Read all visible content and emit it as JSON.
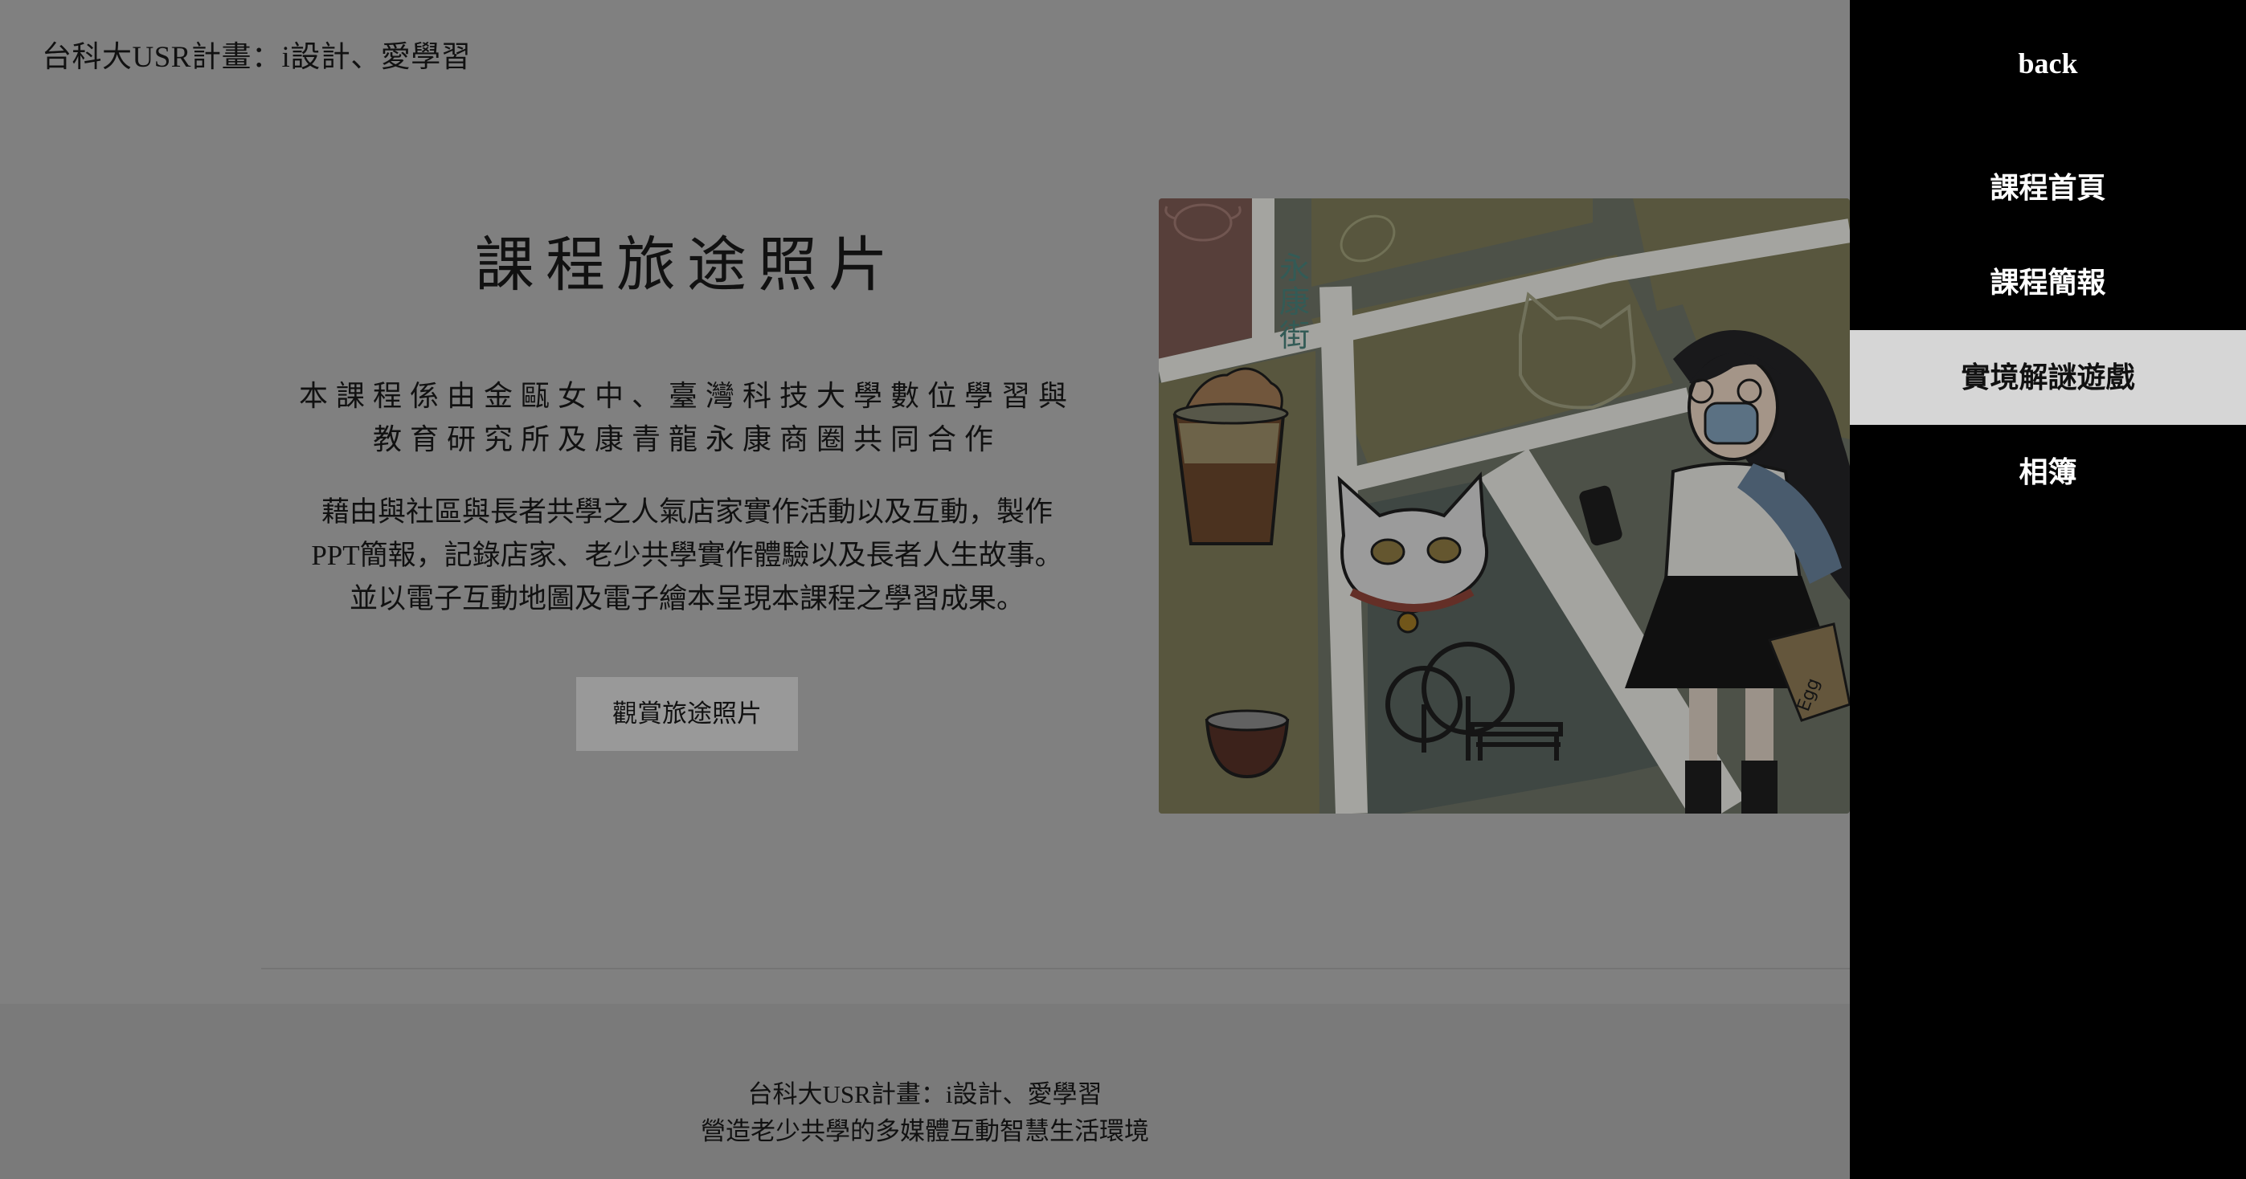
{
  "header": {
    "site_title": "台科大USR計畫：i設計、愛學習"
  },
  "main": {
    "heading": "課程旅途照片",
    "subtitle_lines": [
      "本課程係由金甌女中、臺灣科技大學數位學習與",
      "教育研究所及康青龍永康商圈共同合作"
    ],
    "body_lines": [
      "藉由與社區與長者共學之人氣店家實作活動以及互動，製作",
      "PPT簡報，記錄店家、老少共學實作體驗以及長者人生故事。",
      "並以電子互動地圖及電子繪本呈現本課程之學習成果。"
    ],
    "button_label": "觀賞旅途照片"
  },
  "illustration": {
    "street_sign": "永康街",
    "bag_text": "Egg"
  },
  "footer": {
    "line1": "台科大USR計畫：i設計、愛學習",
    "line2": "營造老少共學的多媒體互動智慧生活環境"
  },
  "side_menu": {
    "back_label": "back",
    "items": [
      {
        "label": "課程首頁",
        "active": false
      },
      {
        "label": "課程簡報",
        "active": false
      },
      {
        "label": "實境解謎遊戲",
        "active": true
      },
      {
        "label": "相簿",
        "active": false
      }
    ]
  }
}
